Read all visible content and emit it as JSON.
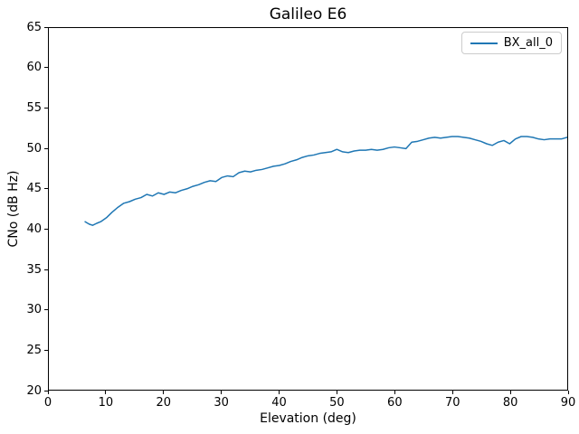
{
  "figure": {
    "background": "#ffffff",
    "frame_color": "#000000"
  },
  "chart_data": {
    "type": "line",
    "title": "Galileo E6",
    "xlabel": "Elevation (deg)",
    "ylabel": "CNo (dB Hz)",
    "xlim": [
      0,
      90
    ],
    "ylim": [
      20,
      65
    ],
    "xticks": [
      0,
      10,
      20,
      30,
      40,
      50,
      60,
      70,
      80,
      90
    ],
    "yticks": [
      20,
      25,
      30,
      35,
      40,
      45,
      50,
      55,
      60,
      65
    ],
    "grid": false,
    "legend_position": "upper right",
    "series": [
      {
        "name": "BX_all_0",
        "color": "#1f77b4",
        "line_width": 1.5,
        "x": [
          6.3,
          7,
          7.6,
          8.3,
          9,
          10,
          11,
          12,
          13,
          14,
          15,
          16,
          17,
          18,
          19,
          20,
          21,
          22,
          23,
          24,
          25,
          26,
          27,
          28,
          29,
          30,
          31,
          32,
          33,
          34,
          35,
          36,
          37,
          38,
          39,
          40,
          41,
          42,
          43,
          44,
          45,
          46,
          47,
          48,
          49,
          50,
          51,
          52,
          53,
          54,
          55,
          56,
          57,
          58,
          59,
          60,
          61,
          62,
          63,
          64,
          65,
          66,
          67,
          68,
          69,
          70,
          71,
          72,
          73,
          74,
          75,
          76,
          77,
          78,
          79,
          80,
          81,
          82,
          83,
          84,
          85,
          86,
          87,
          88,
          89,
          90
        ],
        "y": [
          40.9,
          40.6,
          40.45,
          40.7,
          40.9,
          41.4,
          42.1,
          42.7,
          43.2,
          43.4,
          43.7,
          43.9,
          44.3,
          44.1,
          44.5,
          44.3,
          44.6,
          44.5,
          44.8,
          45.0,
          45.3,
          45.5,
          45.8,
          46.0,
          45.9,
          46.4,
          46.6,
          46.5,
          47.0,
          47.2,
          47.1,
          47.3,
          47.4,
          47.6,
          47.8,
          47.9,
          48.1,
          48.4,
          48.6,
          48.9,
          49.1,
          49.2,
          49.4,
          49.5,
          49.6,
          49.9,
          49.6,
          49.5,
          49.7,
          49.8,
          49.8,
          49.9,
          49.8,
          49.9,
          50.1,
          50.2,
          50.1,
          50.0,
          50.8,
          50.9,
          51.1,
          51.3,
          51.4,
          51.3,
          51.4,
          51.5,
          51.5,
          51.4,
          51.3,
          51.1,
          50.9,
          50.6,
          50.4,
          50.8,
          51.0,
          50.6,
          51.2,
          51.5,
          51.5,
          51.4,
          51.2,
          51.1,
          51.2,
          51.2,
          51.2,
          51.4
        ]
      }
    ]
  }
}
